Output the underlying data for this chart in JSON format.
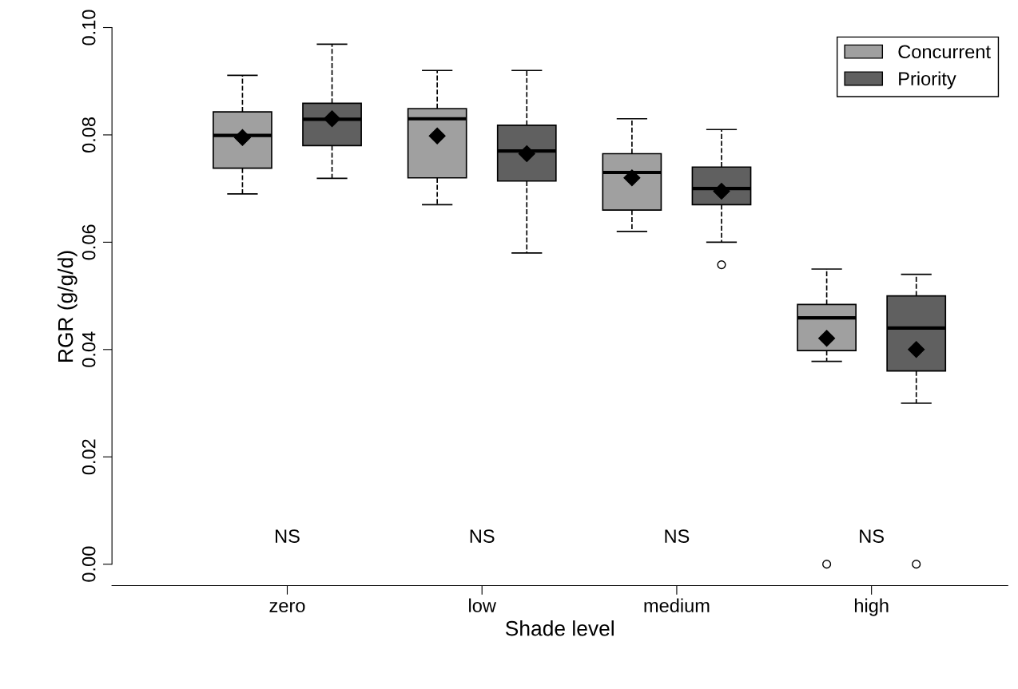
{
  "chart_data": {
    "type": "box",
    "xlabel": "Shade level",
    "ylabel": "RGR (g/g/d)",
    "categories": [
      "zero",
      "low",
      "medium",
      "high"
    ],
    "series": [
      {
        "name": "Concurrent",
        "color": "#a0a0a0",
        "boxes": [
          {
            "low": 0.069,
            "q1": 0.0738,
            "median": 0.0799,
            "q3": 0.0843,
            "high": 0.0911,
            "mean": 0.0795
          },
          {
            "low": 0.067,
            "q1": 0.072,
            "median": 0.083,
            "q3": 0.0849,
            "high": 0.092,
            "mean": 0.0798
          },
          {
            "low": 0.062,
            "q1": 0.066,
            "median": 0.073,
            "q3": 0.0765,
            "high": 0.083,
            "mean": 0.072
          },
          {
            "low": 0.0378,
            "q1": 0.0398,
            "median": 0.0459,
            "q3": 0.0484,
            "high": 0.055,
            "mean": 0.0421,
            "outliers": [
              0.0
            ]
          }
        ]
      },
      {
        "name": "Priority",
        "color": "#606060",
        "boxes": [
          {
            "low": 0.0719,
            "q1": 0.078,
            "median": 0.0829,
            "q3": 0.0859,
            "high": 0.0969,
            "mean": 0.083
          },
          {
            "low": 0.058,
            "q1": 0.0714,
            "median": 0.077,
            "q3": 0.0818,
            "high": 0.092,
            "mean": 0.0765
          },
          {
            "low": 0.06,
            "q1": 0.067,
            "median": 0.07,
            "q3": 0.074,
            "high": 0.081,
            "mean": 0.0695,
            "outliers": [
              0.0558
            ]
          },
          {
            "low": 0.03,
            "q1": 0.036,
            "median": 0.044,
            "q3": 0.05,
            "high": 0.054,
            "mean": 0.04,
            "outliers": [
              0.0
            ]
          }
        ]
      }
    ],
    "ylim": [
      -0.004,
      0.1
    ],
    "yticks": [
      {
        "value": 0,
        "label": "0.00"
      },
      {
        "value": 0.02,
        "label": "0.02"
      },
      {
        "value": 0.04,
        "label": "0.04"
      },
      {
        "value": 0.06,
        "label": "0.06"
      },
      {
        "value": 0.08,
        "label": "0.08"
      },
      {
        "value": 0.1,
        "label": "0.10"
      }
    ],
    "annotations": [
      "NS",
      "NS",
      "NS",
      "NS"
    ],
    "legend": "top right",
    "grid": false
  }
}
